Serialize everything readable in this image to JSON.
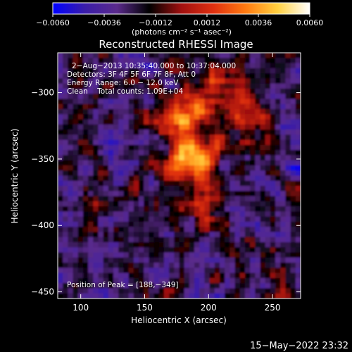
{
  "chart_data": {
    "type": "heatmap",
    "title": "Reconstructed RHESSI Image",
    "xlabel": "Heliocentric X (arcsec)",
    "ylabel": "Heliocentric Y (arcsec)",
    "xlim": [
      82,
      272
    ],
    "ylim": [
      -455,
      -270
    ],
    "x_ticks": [
      100,
      150,
      200,
      250
    ],
    "y_ticks": [
      -300,
      -350,
      -400,
      -450
    ],
    "x_tick_labels": [
      "100",
      "150",
      "200",
      "250"
    ],
    "y_tick_labels": [
      "−300",
      "−350",
      "−400",
      "−450"
    ],
    "colorbar": {
      "range": [
        -0.006,
        0.006
      ],
      "ticks": [
        -0.006,
        -0.0036,
        -0.0012,
        0.0012,
        0.0036,
        0.006
      ],
      "tick_labels": [
        "−0.0060",
        "−0.0036",
        "−0.0012",
        "0.0012",
        "0.0036",
        "0.0060"
      ],
      "unit_label": "(photons cm⁻² s⁻¹ asec⁻²)",
      "colors": [
        "#0000ff",
        "#3a1da8",
        "#5a2a8c",
        "#000000",
        "#a0100f",
        "#e03010",
        "#ff7a10",
        "#ffd040",
        "#ffffff"
      ]
    },
    "annotations": [
      "2−Aug−2013 10:35:40.000 to 10:37:04.000",
      "Detectors: 3F 4F 5F 6F 7F 8F, Att 0",
      "Energy Range: 6.0 − 12.0 keV",
      "Clean    Total counts: 1.09E+04"
    ],
    "peak_label": "Position of Peak = [188,−349]",
    "peak": {
      "x": 188,
      "y": -349
    },
    "sources": [
      {
        "x": 188,
        "y": -349,
        "peak_value": 0.006
      },
      {
        "x": 177,
        "y": -315,
        "peak_value": 0.0035
      },
      {
        "x": 200,
        "y": -300,
        "peak_value": 0.003
      },
      {
        "x": 196,
        "y": -385,
        "peak_value": 0.0028
      },
      {
        "x": 230,
        "y": -320,
        "peak_value": 0.0022
      }
    ]
  },
  "timestamp": "15−May−2022 23:32"
}
